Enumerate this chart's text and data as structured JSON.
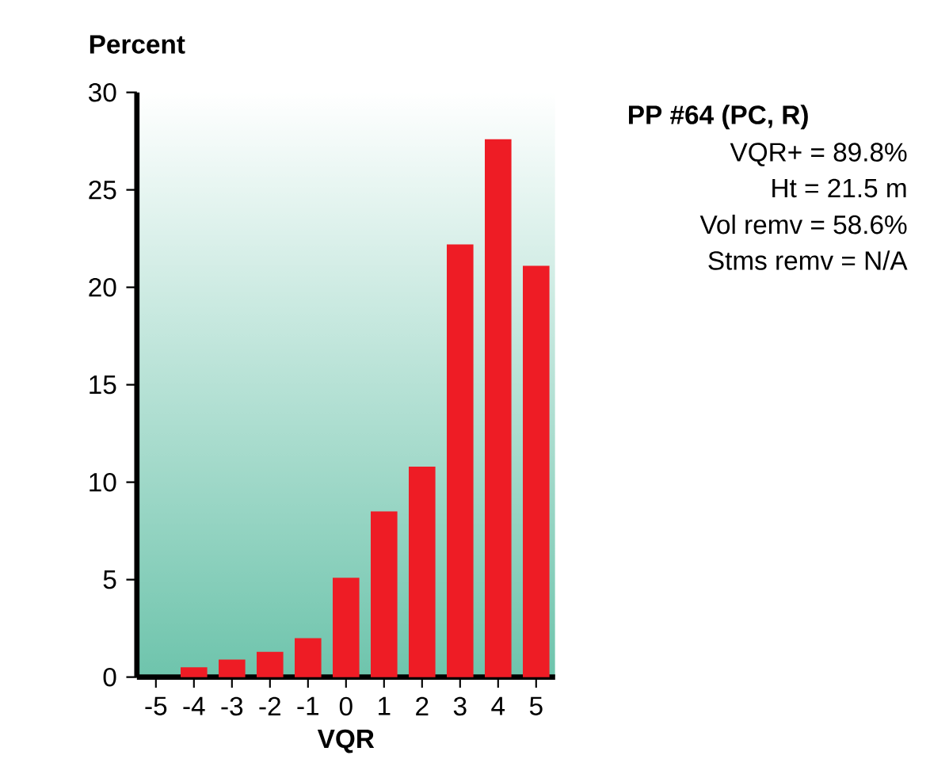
{
  "chart_data": {
    "type": "bar",
    "title": "PP #64 (PC, R)",
    "xlabel": "VQR",
    "ylabel": "Percent",
    "categories": [
      "-5",
      "-4",
      "-3",
      "-2",
      "-1",
      "0",
      "1",
      "2",
      "3",
      "4",
      "5"
    ],
    "values": [
      0,
      0.5,
      0.9,
      1.3,
      2.0,
      5.1,
      8.5,
      10.8,
      22.2,
      27.6,
      21.1
    ],
    "color": "#ee1c25",
    "ylim": [
      0,
      30
    ],
    "yticks": [
      0,
      5,
      10,
      15,
      20,
      25,
      30
    ],
    "annotations": [
      "VQR+ = 89.8%",
      "Ht = 21.5 m",
      "Vol remv = 58.6%",
      "Stms remv = N/A"
    ]
  }
}
